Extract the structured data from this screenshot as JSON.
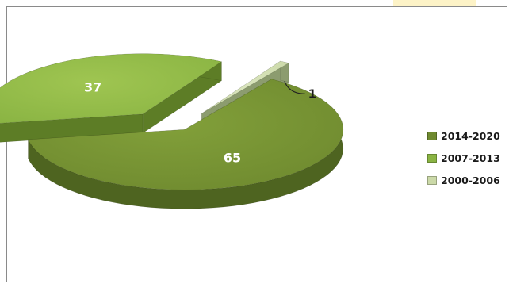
{
  "chart_data": {
    "type": "pie",
    "title": "",
    "slices": [
      {
        "label": "2014-2020",
        "value": 65,
        "color": "#6f8a2f",
        "side": "#4e6420",
        "top_light": "#82a03a"
      },
      {
        "label": "2007-2013",
        "value": 37,
        "color": "#8ab443",
        "side": "#5d7d26",
        "top_light": "#9fc551"
      },
      {
        "label": "2000-2006",
        "value": 1,
        "color": "#cbd9a8",
        "side": "#8c9c6f",
        "top_light": "#dbe6bf"
      }
    ],
    "data_labels": [
      "65",
      "37",
      "1"
    ],
    "legend_placement": "right",
    "style": "3d-exploded"
  }
}
